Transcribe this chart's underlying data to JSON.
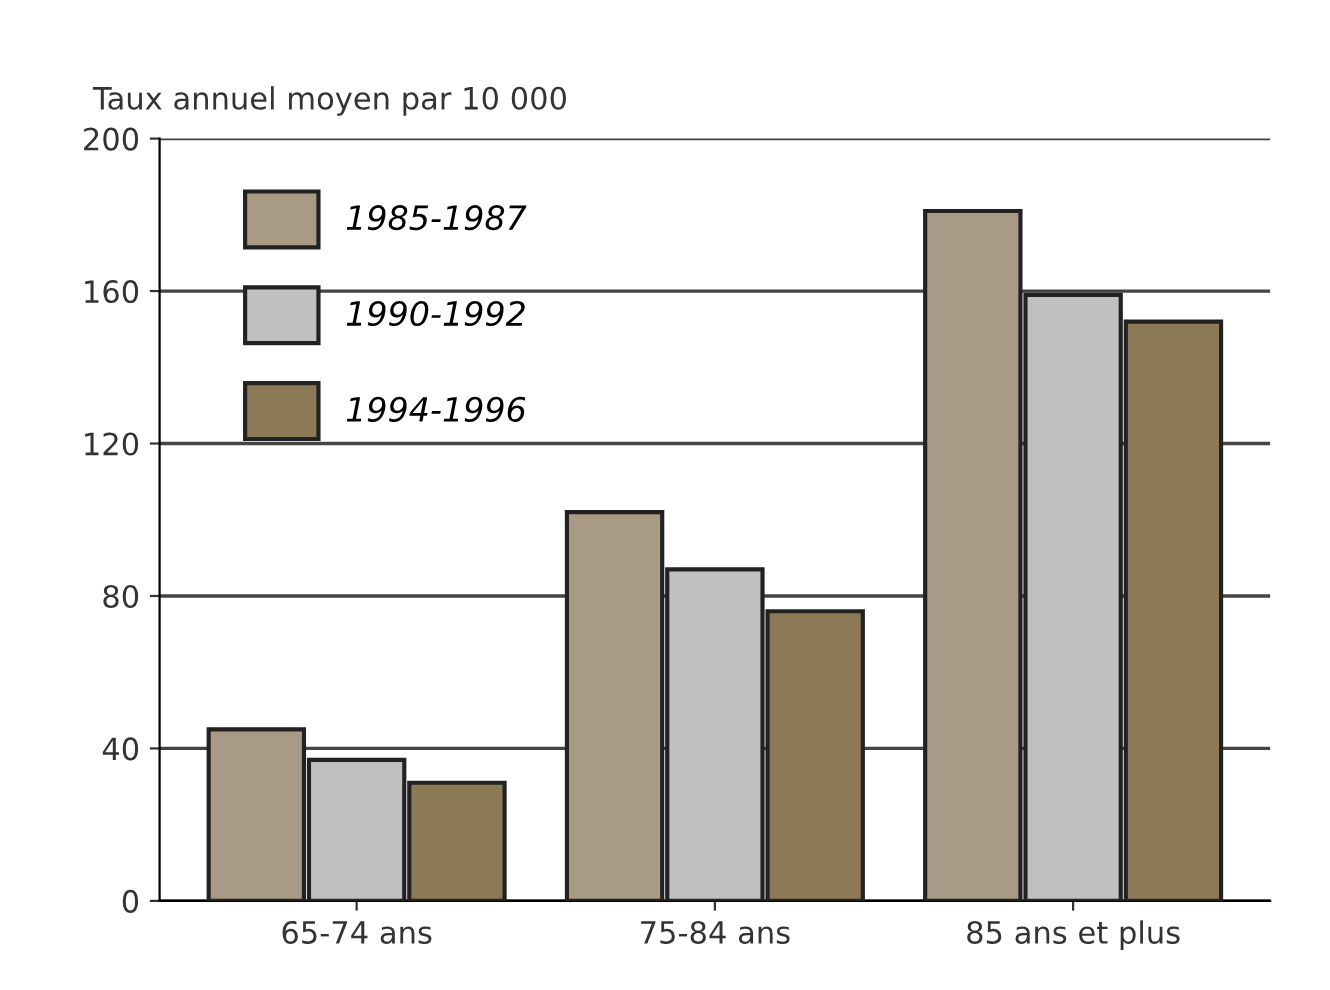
{
  "chart_data": {
    "type": "bar",
    "ylabel": "Taux annuel moyen par 10 000",
    "categories": [
      "65-74 ans",
      "75-84 ans",
      "85 ans et plus"
    ],
    "series": [
      {
        "name": "1985-1987",
        "color": "#a89a84",
        "values": [
          45,
          102,
          181
        ]
      },
      {
        "name": "1990-1992",
        "color": "#c0c0c0",
        "values": [
          37,
          87,
          159
        ]
      },
      {
        "name": "1994-1996",
        "color": "#8c7a56",
        "values": [
          31,
          76,
          152
        ]
      }
    ],
    "ylim": [
      0,
      200
    ],
    "yticks": [
      0,
      40,
      80,
      120,
      160,
      200
    ],
    "grid": "y",
    "legend": "top left"
  }
}
